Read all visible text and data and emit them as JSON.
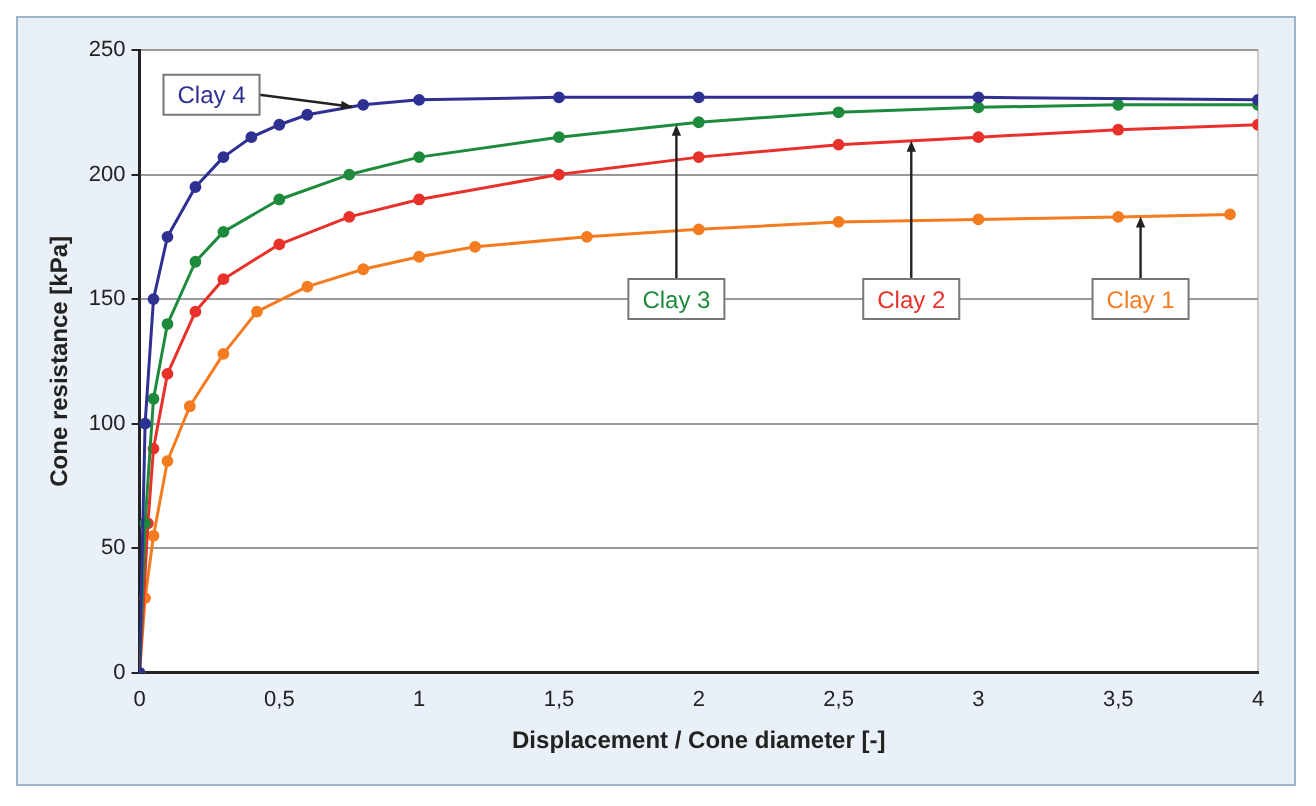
{
  "chart_data": {
    "type": "line",
    "xlabel": "Displacement / Cone diameter [-]",
    "ylabel": "Cone resistance [kPa]",
    "xlim": [
      0,
      4
    ],
    "xticks": [
      0,
      {
        "value": 0.5,
        "label": "0,5"
      },
      1,
      {
        "value": 1.5,
        "label": "1,5"
      },
      2,
      {
        "value": 2.5,
        "label": "2,5"
      },
      3,
      {
        "value": 3.5,
        "label": "3,5"
      },
      4
    ],
    "ylim": [
      0,
      250
    ],
    "yticks": [
      0,
      50,
      100,
      150,
      200,
      250
    ],
    "grid": "y",
    "legend": false,
    "marker": "circle",
    "line_style": "solid",
    "series": [
      {
        "name": "Clay 4",
        "color": "#2e3192",
        "x": [
          0,
          0.02,
          0.05,
          0.1,
          0.2,
          0.3,
          0.4,
          0.5,
          0.6,
          0.8,
          1,
          1.5,
          2,
          3,
          4
        ],
        "values": [
          0,
          100,
          150,
          175,
          195,
          207,
          215,
          220,
          224,
          228,
          230,
          231,
          231,
          231,
          230
        ]
      },
      {
        "name": "Clay 3",
        "color": "#1e8a3c",
        "x": [
          0,
          0.02,
          0.05,
          0.1,
          0.2,
          0.3,
          0.5,
          0.75,
          1,
          1.5,
          2,
          2.5,
          3,
          3.5,
          4
        ],
        "values": [
          0,
          60,
          110,
          140,
          165,
          177,
          190,
          200,
          207,
          215,
          221,
          225,
          227,
          228,
          228
        ]
      },
      {
        "name": "Clay 2",
        "color": "#e8312a",
        "x": [
          0,
          0.03,
          0.05,
          0.1,
          0.2,
          0.3,
          0.5,
          0.75,
          1,
          1.5,
          2,
          2.5,
          3,
          3.5,
          4
        ],
        "values": [
          0,
          60,
          90,
          120,
          145,
          158,
          172,
          183,
          190,
          200,
          207,
          212,
          215,
          218,
          220
        ]
      },
      {
        "name": "Clay 1",
        "color": "#f47c20",
        "x": [
          0,
          0.02,
          0.05,
          0.1,
          0.18,
          0.3,
          0.42,
          0.6,
          0.8,
          1,
          1.2,
          1.6,
          2,
          2.5,
          3,
          3.5,
          3.9
        ],
        "values": [
          0,
          30,
          55,
          85,
          107,
          128,
          145,
          155,
          162,
          167,
          171,
          175,
          178,
          181,
          182,
          183,
          184
        ]
      }
    ]
  }
}
